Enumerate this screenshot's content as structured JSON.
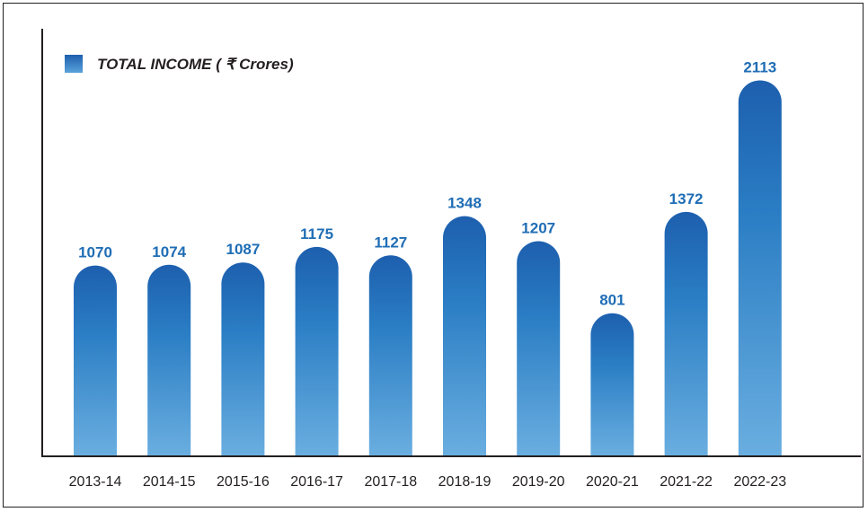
{
  "chart_data": {
    "type": "bar",
    "categories": [
      "2013-14",
      "2014-15",
      "2015-16",
      "2016-17",
      "2017-18",
      "2018-19",
      "2019-20",
      "2020-21",
      "2021-22",
      "2022-23"
    ],
    "series": [
      {
        "name": "TOTAL INCOME ( ₹  Crores)",
        "values": [
          1070,
          1074,
          1087,
          1175,
          1127,
          1348,
          1207,
          801,
          1372,
          2113
        ]
      }
    ],
    "value_labels": [
      "1070",
      "1074",
      "1087",
      "1175",
      "1127",
      "1348",
      "1207",
      "801",
      "1372",
      "2113"
    ],
    "legend_position": "top-left",
    "grid": false,
    "colors": {
      "bar_top": "#1d5fae",
      "bar_mid": "#2a7dc4",
      "bar_bottom": "#6aaee0",
      "label": "#1f6db5",
      "axis": "#231f20"
    }
  }
}
